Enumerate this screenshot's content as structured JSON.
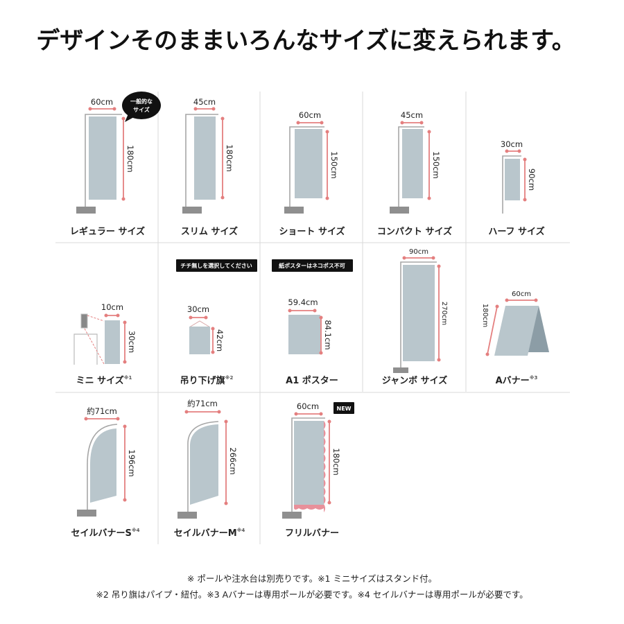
{
  "title": "デザインそのままいろんなサイズに変えられます。",
  "colors": {
    "banner": "#b9c6cc",
    "dimension": "#e47f7f",
    "pole": "#a6a6a6",
    "badge": "#111111"
  },
  "items": [
    {
      "name": "レギュラー サイズ",
      "width": "60cm",
      "height": "180cm",
      "bubble": [
        "一般的な",
        "サイズ"
      ]
    },
    {
      "name": "スリム サイズ",
      "width": "45cm",
      "height": "180cm"
    },
    {
      "name": "ショート サイズ",
      "width": "60cm",
      "height": "150cm"
    },
    {
      "name": "コンパクト サイズ",
      "width": "45cm",
      "height": "150cm"
    },
    {
      "name": "ハーフ サイズ",
      "width": "30cm",
      "height": "90cm"
    },
    {
      "name": "ミニ サイズ",
      "note": "※1",
      "width": "10cm",
      "height": "30cm"
    },
    {
      "name": "吊り下げ旗",
      "note": "※2",
      "width": "30cm",
      "height": "42cm",
      "badge": "チチ無しを選択してください"
    },
    {
      "name": "A1 ポスター",
      "width": "59.4cm",
      "height": "84.1cm",
      "badge": "紙ポスターはネコポス不可"
    },
    {
      "name": "ジャンボ サイズ",
      "width": "90cm",
      "height": "270cm"
    },
    {
      "name": "Aバナー",
      "note": "※3",
      "width": "60cm",
      "height": "180cm"
    },
    {
      "name": "セイルバナーS",
      "note": "※4",
      "width": "約71cm",
      "height": "196cm"
    },
    {
      "name": "セイルバナーM",
      "note": "※4",
      "width": "約71cm",
      "height": "266cm"
    },
    {
      "name": "フリルバナー",
      "width": "60cm",
      "height": "180cm",
      "badge": "NEW"
    }
  ],
  "footnotes": [
    "※ ポールや注水台は別売りです。※1 ミニサイズはスタンド付。",
    "※2 吊り旗はパイプ・紐付。※3 Aバナーは専用ポールが必要です。※4 セイルバナーは専用ポールが必要です。"
  ]
}
